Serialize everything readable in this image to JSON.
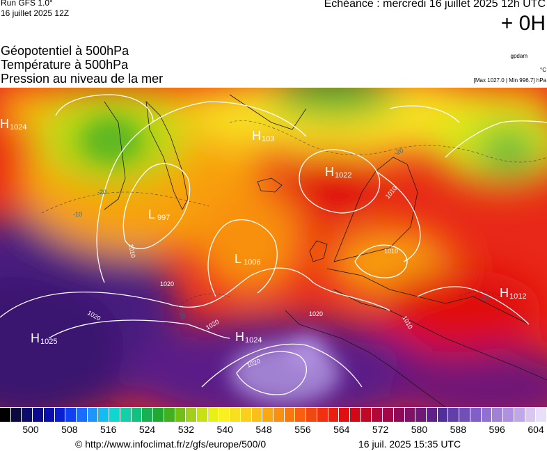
{
  "header": {
    "run": "Run GFS 1.0°",
    "run_date": "16 juillet 2025 12Z",
    "echeance": "Echéance : mercredi 16 juillet 2025 12h UTC",
    "offset": "+ 0H"
  },
  "titles": [
    "Géopotentiel à 500hPa",
    "Température à 500hPa",
    "Pression au niveau de la mer"
  ],
  "units": {
    "geopotential": "gpdam",
    "temperature": "°C",
    "pressure_minmax": "[Max 1027.0 | Min 996.7] hPa"
  },
  "pressure_centers": [
    {
      "type": "H",
      "value": "1024",
      "id": "h-1024-nw"
    },
    {
      "type": "H",
      "value": "103",
      "id": "h-103-greenland"
    },
    {
      "type": "H",
      "value": "1022",
      "id": "h-1022-scandinavia"
    },
    {
      "type": "L",
      "value": "997",
      "id": "l-997"
    },
    {
      "type": "L",
      "value": "1006",
      "id": "l-1006"
    },
    {
      "type": "H",
      "value": "1012",
      "id": "h-1012-east"
    },
    {
      "type": "H",
      "value": "1025",
      "id": "h-1025-atlantic"
    },
    {
      "type": "H",
      "value": "1024",
      "id": "h-1024-africa"
    }
  ],
  "isobar_labels": [
    "1010",
    "1020",
    "1020",
    "1020",
    "1010",
    "1010",
    "1010",
    "1020",
    "1020"
  ],
  "temp_labels": [
    "-20",
    "-20",
    "-10",
    "-20",
    "-10"
  ],
  "colorbar": {
    "colors": [
      "#000000",
      "#0a0a3c",
      "#0c0c6a",
      "#0b0b8c",
      "#0a10b0",
      "#0a20d0",
      "#1040f0",
      "#1b6cf8",
      "#1e96f8",
      "#14bcf0",
      "#10d6d0",
      "#14d0a8",
      "#14c080",
      "#18b050",
      "#20a830",
      "#40b020",
      "#70c018",
      "#a0d018",
      "#c8e018",
      "#e8f018",
      "#f8f020",
      "#f8e020",
      "#f8d020",
      "#f8c018",
      "#f8a810",
      "#f89010",
      "#f87810",
      "#f86010",
      "#f04810",
      "#f03010",
      "#e82010",
      "#e01010",
      "#d00818",
      "#c00828",
      "#b00838",
      "#a00848",
      "#900858",
      "#801068",
      "#701878",
      "#602088",
      "#503098",
      "#6040a8",
      "#7050b8",
      "#8060c8",
      "#9070d0",
      "#a080d8",
      "#b090e0",
      "#c0a8e8",
      "#d8c8f0",
      "#e8e0f8"
    ],
    "labels": [
      "500",
      "508",
      "516",
      "524",
      "532",
      "540",
      "548",
      "556",
      "564",
      "572",
      "580",
      "588",
      "596",
      "604"
    ]
  },
  "footer": {
    "url": "© http://www.infoclimat.fr/z/gfs/europe/500/0",
    "date": "16 juil. 2025 15:35 UTC"
  }
}
